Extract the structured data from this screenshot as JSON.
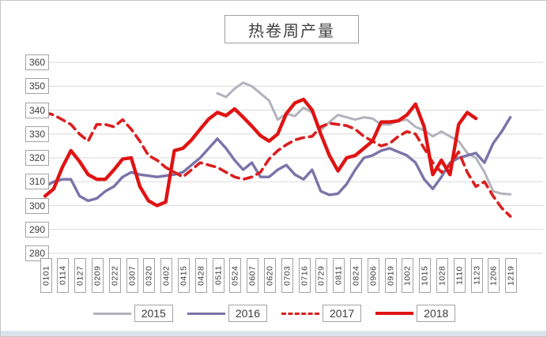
{
  "title": "热卷周产量",
  "chart_data": {
    "type": "line",
    "title": "热卷周产量",
    "xlabel": "",
    "ylabel": "",
    "ylim": [
      280,
      360
    ],
    "yticks": [
      280,
      290,
      300,
      310,
      320,
      330,
      340,
      350,
      360
    ],
    "grid": true,
    "legend_position": "bottom",
    "x_note": "weekly points; tick labels shown every 2nd point (month+day)",
    "x_tick_labels": [
      "0101",
      "0114",
      "0127",
      "0209",
      "0222",
      "0307",
      "0320",
      "0402",
      "0415",
      "0428",
      "0511",
      "0524",
      "0607",
      "0620",
      "0703",
      "0716",
      "0729",
      "0811",
      "0824",
      "0906",
      "0919",
      "1002",
      "1015",
      "1028",
      "1110",
      "1123",
      "1206",
      "1219"
    ],
    "ticks_every_n_points": 2,
    "series": [
      {
        "name": "2015",
        "color": "#b2b2bc",
        "style": "solid",
        "width": 3,
        "values": [
          null,
          null,
          null,
          null,
          null,
          null,
          null,
          null,
          null,
          null,
          null,
          null,
          null,
          null,
          null,
          null,
          null,
          null,
          null,
          null,
          347,
          345.5,
          349,
          351.5,
          350,
          347,
          344,
          336,
          338.5,
          337.5,
          341,
          339,
          331.5,
          335,
          338,
          337,
          336,
          337,
          336.5,
          334,
          334,
          335.5,
          336,
          333,
          331.5,
          329,
          331,
          329,
          327,
          322,
          320,
          314,
          306,
          305,
          304.7
        ]
      },
      {
        "name": "2016",
        "color": "#7a74a8",
        "style": "solid",
        "width": 3.4,
        "values": [
          308,
          310,
          311,
          311,
          304,
          302,
          303,
          306,
          308,
          312,
          314,
          313,
          312.5,
          312,
          312.5,
          313,
          314,
          317,
          320,
          324,
          328,
          324,
          319,
          315,
          318,
          312,
          312,
          315,
          317,
          313,
          311,
          315,
          306,
          304.5,
          305,
          309,
          315,
          320,
          321,
          323,
          324,
          322.5,
          321,
          318,
          311,
          307,
          312,
          318,
          320,
          321,
          322,
          318,
          326,
          331,
          337
        ]
      },
      {
        "name": "2017",
        "color": "#db1f1f",
        "style": "dashed",
        "width": 3.6,
        "values": [
          339,
          338,
          336,
          334,
          330,
          327,
          334,
          334,
          333,
          336,
          332,
          327,
          321,
          319,
          316,
          314,
          312,
          315,
          318,
          317,
          316,
          314,
          312,
          311,
          312,
          314,
          319.5,
          323,
          325.5,
          327.5,
          328.5,
          329,
          333,
          334.5,
          334,
          333.5,
          332,
          329,
          327,
          325,
          326,
          329,
          331,
          330,
          324,
          318,
          314,
          317,
          322.5,
          314,
          308,
          310,
          304,
          299,
          295.5
        ]
      },
      {
        "name": "2018",
        "color": "#e01313",
        "style": "solid",
        "width": 4.4,
        "values": [
          304,
          307,
          316,
          323,
          318.5,
          313,
          311,
          311,
          315,
          319.5,
          320,
          308,
          302,
          300,
          301.5,
          323,
          324,
          327.5,
          332,
          336.3,
          339,
          337.7,
          340.5,
          337,
          333.3,
          329.3,
          327,
          330,
          338.5,
          343,
          344.5,
          340,
          330,
          321,
          314.5,
          320,
          321,
          324,
          327,
          335,
          335,
          335.5,
          338,
          342.5,
          333,
          313,
          319,
          313,
          334,
          339,
          336.5,
          null,
          null,
          null,
          null
        ]
      }
    ],
    "legend": [
      "2015",
      "2016",
      "2017",
      "2018"
    ]
  },
  "style_notes": {
    "boxed_labels": "every axis tick label, the title and legend labels sit in small gray-bordered boxes",
    "gridline_color": "#d9d9d9"
  }
}
